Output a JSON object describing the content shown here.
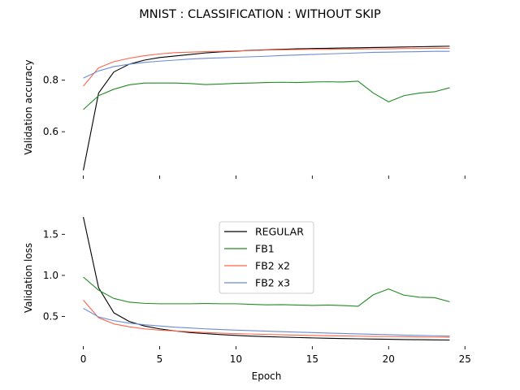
{
  "title": "MNIST : CLASSIFICATION : WITHOUT SKIP",
  "chart_data": [
    {
      "type": "line",
      "title": "",
      "xlabel": "",
      "ylabel": "Validation accuracy",
      "x": [
        0,
        1,
        2,
        3,
        4,
        5,
        6,
        7,
        8,
        9,
        10,
        11,
        12,
        13,
        14,
        15,
        16,
        17,
        18,
        19,
        20,
        21,
        22,
        23,
        24
      ],
      "xlim": [
        -1.2,
        25.2
      ],
      "ylim": [
        0.43,
        0.96
      ],
      "xticks": [
        0,
        5,
        10,
        15,
        20,
        25
      ],
      "yticks": [
        0.6,
        0.8
      ],
      "ytick_labels": [
        "0.6",
        "0.8"
      ],
      "show_xtick_labels": false,
      "grid": false,
      "series": [
        {
          "name": "REGULAR",
          "color": "#000000",
          "values": [
            0.45,
            0.75,
            0.832,
            0.862,
            0.878,
            0.888,
            0.894,
            0.9,
            0.906,
            0.91,
            0.913,
            0.916,
            0.918,
            0.92,
            0.922,
            0.923,
            0.924,
            0.925,
            0.926,
            0.927,
            0.928,
            0.929,
            0.93,
            0.931,
            0.932
          ]
        },
        {
          "name": "FB1",
          "color": "#228b22",
          "values": [
            0.686,
            0.74,
            0.765,
            0.782,
            0.789,
            0.789,
            0.789,
            0.787,
            0.783,
            0.785,
            0.788,
            0.789,
            0.791,
            0.792,
            0.791,
            0.793,
            0.794,
            0.793,
            0.796,
            0.75,
            0.716,
            0.74,
            0.75,
            0.755,
            0.771
          ]
        },
        {
          "name": "FB2 x2",
          "color": "#ff6347",
          "values": [
            0.777,
            0.848,
            0.872,
            0.885,
            0.895,
            0.902,
            0.907,
            0.909,
            0.911,
            0.912,
            0.914,
            0.915,
            0.917,
            0.918,
            0.919,
            0.92,
            0.92,
            0.921,
            0.921,
            0.922,
            0.922,
            0.923,
            0.923,
            0.924,
            0.924
          ]
        },
        {
          "name": "FB2 x3",
          "color": "#6a8bd4",
          "values": [
            0.808,
            0.836,
            0.853,
            0.862,
            0.869,
            0.874,
            0.878,
            0.882,
            0.885,
            0.887,
            0.889,
            0.891,
            0.893,
            0.896,
            0.898,
            0.9,
            0.902,
            0.904,
            0.906,
            0.908,
            0.909,
            0.91,
            0.911,
            0.912,
            0.912
          ]
        }
      ]
    },
    {
      "type": "line",
      "title": "",
      "xlabel": "Epoch",
      "ylabel": "Validation loss",
      "x": [
        0,
        1,
        2,
        3,
        4,
        5,
        6,
        7,
        8,
        9,
        10,
        11,
        12,
        13,
        14,
        15,
        16,
        17,
        18,
        19,
        20,
        21,
        22,
        23,
        24
      ],
      "xlim": [
        -1.2,
        25.2
      ],
      "ylim": [
        0.14,
        1.8
      ],
      "xticks": [
        0,
        5,
        10,
        15,
        20,
        25
      ],
      "xtick_labels": [
        "0",
        "5",
        "10",
        "15",
        "20",
        "25"
      ],
      "yticks": [
        0.5,
        1.0,
        1.5
      ],
      "ytick_labels": [
        "0.5",
        "1.0",
        "1.5"
      ],
      "grid": false,
      "legend": {
        "position": "upper-center"
      },
      "series": [
        {
          "name": "REGULAR",
          "color": "#000000",
          "values": [
            1.71,
            0.85,
            0.545,
            0.44,
            0.385,
            0.35,
            0.325,
            0.305,
            0.292,
            0.28,
            0.27,
            0.262,
            0.255,
            0.25,
            0.245,
            0.24,
            0.236,
            0.232,
            0.229,
            0.226,
            0.223,
            0.22,
            0.218,
            0.216,
            0.214
          ]
        },
        {
          "name": "FB1",
          "color": "#228b22",
          "values": [
            0.98,
            0.82,
            0.72,
            0.675,
            0.66,
            0.655,
            0.655,
            0.655,
            0.658,
            0.655,
            0.655,
            0.648,
            0.642,
            0.645,
            0.64,
            0.635,
            0.64,
            0.633,
            0.625,
            0.765,
            0.835,
            0.76,
            0.735,
            0.73,
            0.68
          ]
        },
        {
          "name": "FB2 x2",
          "color": "#ff6347",
          "values": [
            0.7,
            0.485,
            0.41,
            0.375,
            0.35,
            0.335,
            0.325,
            0.315,
            0.305,
            0.298,
            0.292,
            0.287,
            0.282,
            0.278,
            0.274,
            0.27,
            0.267,
            0.264,
            0.261,
            0.258,
            0.256,
            0.254,
            0.252,
            0.25,
            0.248
          ]
        },
        {
          "name": "FB2 x3",
          "color": "#6a8bd4",
          "values": [
            0.6,
            0.495,
            0.45,
            0.42,
            0.4,
            0.385,
            0.37,
            0.36,
            0.35,
            0.342,
            0.335,
            0.328,
            0.322,
            0.316,
            0.31,
            0.305,
            0.299,
            0.294,
            0.289,
            0.284,
            0.279,
            0.274,
            0.27,
            0.266,
            0.262
          ]
        }
      ]
    }
  ]
}
